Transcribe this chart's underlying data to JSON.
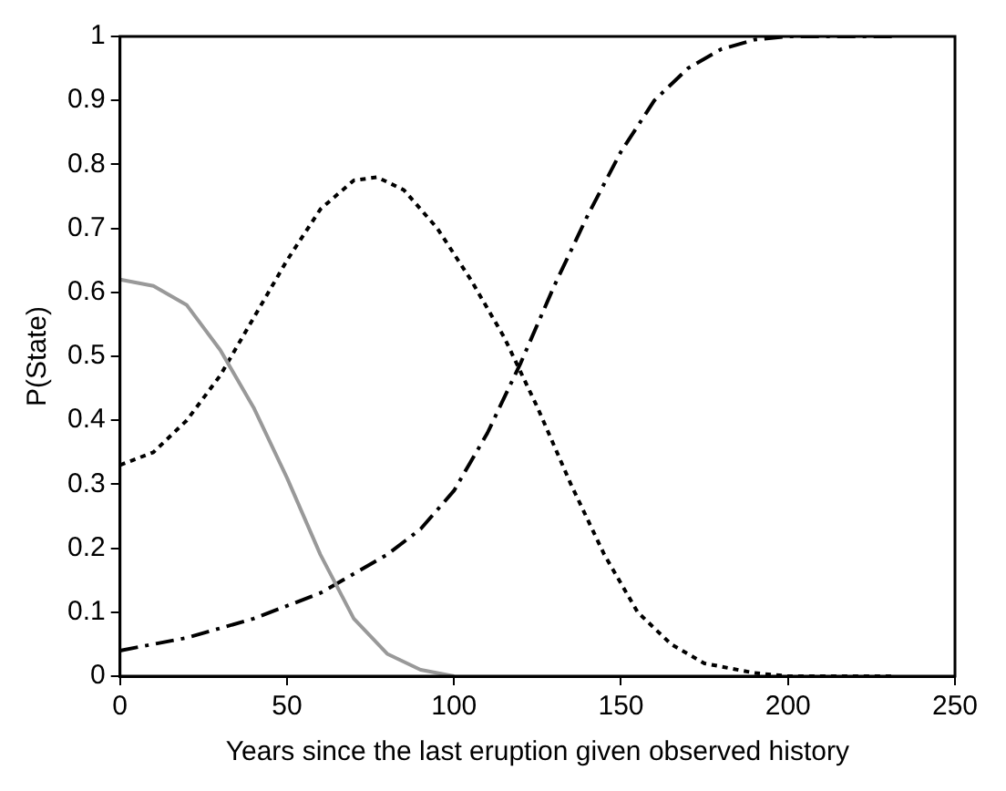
{
  "chart_data": {
    "type": "line",
    "xlabel": "Years since the last eruption given observed history",
    "ylabel": "P(State)",
    "xlim": [
      0,
      250
    ],
    "xticks": [
      0,
      50,
      100,
      150,
      200,
      250
    ],
    "ylim": [
      0,
      1
    ],
    "yticks": [
      0,
      0.1,
      0.2,
      0.3,
      0.4,
      0.5,
      0.6,
      0.7,
      0.8,
      0.9,
      1
    ],
    "grid": false,
    "legend": false,
    "marker": "none",
    "series": [
      {
        "color": "#999999",
        "line_style": "solid",
        "x": [
          0,
          10,
          20,
          30,
          40,
          50,
          60,
          70,
          80,
          90,
          100
        ],
        "values": [
          0.62,
          0.61,
          0.58,
          0.51,
          0.42,
          0.31,
          0.19,
          0.09,
          0.035,
          0.01,
          0
        ]
      },
      {
        "color": "#000000",
        "line_style": "dotted",
        "x": [
          0,
          10,
          20,
          30,
          40,
          50,
          60,
          70,
          77,
          85,
          95,
          105,
          115,
          125,
          135,
          145,
          155,
          165,
          175,
          190,
          200,
          232
        ],
        "values": [
          0.33,
          0.35,
          0.4,
          0.47,
          0.56,
          0.65,
          0.73,
          0.775,
          0.78,
          0.76,
          0.7,
          0.62,
          0.53,
          0.42,
          0.3,
          0.19,
          0.1,
          0.05,
          0.02,
          0.005,
          0,
          0
        ]
      },
      {
        "color": "#000000",
        "line_style": "dashed",
        "x": [
          0,
          20,
          40,
          60,
          80,
          90,
          100,
          110,
          120,
          130,
          140,
          150,
          160,
          170,
          180,
          190,
          200,
          232
        ],
        "values": [
          0.04,
          0.06,
          0.09,
          0.13,
          0.19,
          0.23,
          0.29,
          0.38,
          0.49,
          0.61,
          0.72,
          0.82,
          0.9,
          0.95,
          0.98,
          0.995,
          1,
          1
        ]
      }
    ]
  }
}
